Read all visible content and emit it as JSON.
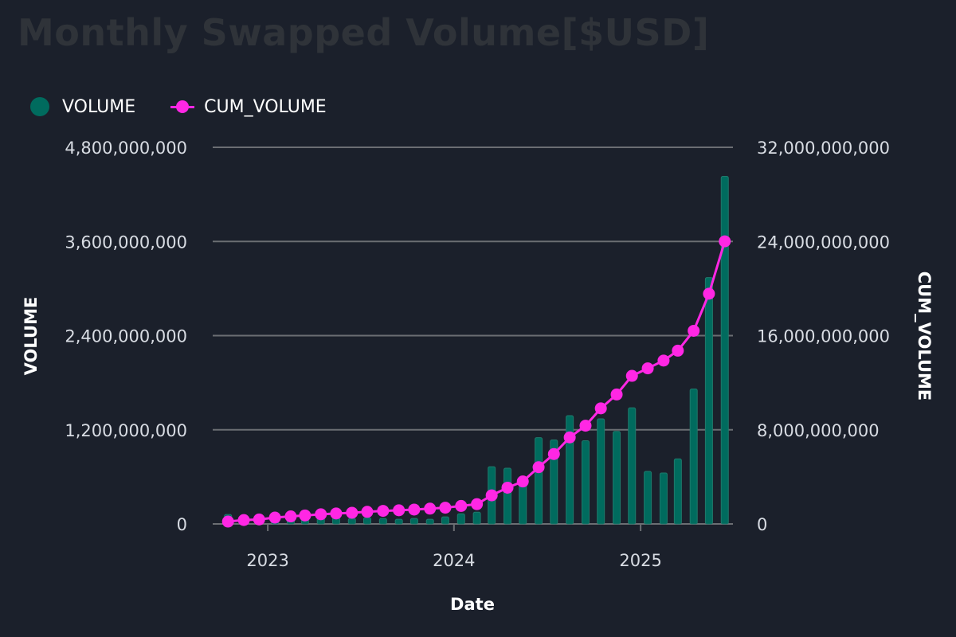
{
  "chart_data": {
    "type": "bar+line",
    "title": "Monthly Swapped Volume[$USD]",
    "xlabel": "Date",
    "ylabel_left": "VOLUME",
    "ylabel_right": "CUM_VOLUME",
    "ylim_left": [
      0,
      4800000000
    ],
    "ylim_right": [
      0,
      32000000000
    ],
    "yticks_left": [
      0,
      1200000000,
      2400000000,
      3600000000,
      4800000000
    ],
    "yticks_right": [
      0,
      8000000000,
      16000000000,
      24000000000,
      32000000000
    ],
    "ytick_labels_left": [
      "0",
      "1,200,000,000",
      "2,400,000,000",
      "3,600,000,000",
      "4,800,000,000"
    ],
    "ytick_labels_right": [
      "0",
      "8,000,000,000",
      "16,000,000,000",
      "24,000,000,000",
      "32,000,000,000"
    ],
    "xticks": [
      {
        "label": "2023",
        "date": "2023-01"
      },
      {
        "label": "2024",
        "date": "2024-01"
      },
      {
        "label": "2025",
        "date": "2025-01"
      }
    ],
    "x_range": [
      "2022-09-15",
      "2025-07-01"
    ],
    "grid": true,
    "legend_position": "top-left",
    "dates": [
      "2022-10",
      "2022-11",
      "2022-12",
      "2023-01",
      "2023-02",
      "2023-03",
      "2023-04",
      "2023-05",
      "2023-06",
      "2023-07",
      "2023-08",
      "2023-09",
      "2023-10",
      "2023-11",
      "2023-12",
      "2024-01",
      "2024-02",
      "2024-03",
      "2024-04",
      "2024-05",
      "2024-06",
      "2024-07",
      "2024-08",
      "2024-09",
      "2024-10",
      "2024-11",
      "2024-12",
      "2025-01",
      "2025-02",
      "2025-03",
      "2025-04",
      "2025-05",
      "2025-06"
    ],
    "series": [
      {
        "name": "VOLUME",
        "type": "bar",
        "color": "#006b5e",
        "values": [
          120000000,
          110000000,
          60000000,
          120000000,
          100000000,
          70000000,
          90000000,
          80000000,
          70000000,
          80000000,
          70000000,
          60000000,
          70000000,
          60000000,
          90000000,
          130000000,
          150000000,
          730000000,
          710000000,
          510000000,
          1100000000,
          1070000000,
          1380000000,
          1060000000,
          1340000000,
          1180000000,
          1480000000,
          670000000,
          650000000,
          830000000,
          1720000000,
          3140000000,
          4430000000
        ]
      },
      {
        "name": "CUM_VOLUME",
        "type": "line",
        "color": "#ff27e4",
        "values": [
          200000000,
          330000000,
          380000000,
          540000000,
          640000000,
          720000000,
          820000000,
          890000000,
          950000000,
          1030000000,
          1110000000,
          1160000000,
          1220000000,
          1300000000,
          1380000000,
          1530000000,
          1680000000,
          2430000000,
          3080000000,
          3610000000,
          4820000000,
          5940000000,
          7350000000,
          8350000000,
          9820000000,
          11000000000,
          12580000000,
          13220000000,
          13880000000,
          14720000000,
          16410000000,
          19560000000,
          24010000000
        ]
      }
    ]
  }
}
